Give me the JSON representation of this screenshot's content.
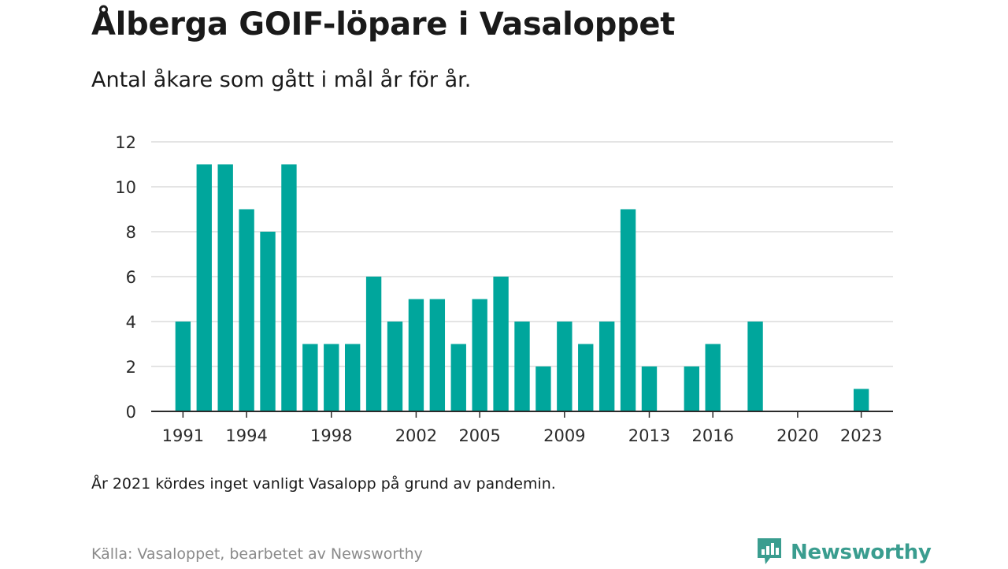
{
  "header": {
    "title": "Ålberga GOIF-löpare i Vasaloppet",
    "subtitle": "Antal åkare som gått i mål år för år."
  },
  "footer": {
    "note": "År 2021 kördes inget vanligt Vasalopp på grund av pandemin.",
    "source": "Källa: Vasaloppet, bearbetet av Newsworthy",
    "brand": "Newsworthy",
    "brand_icon": "newsworthy-logo-icon"
  },
  "colors": {
    "bar": "#00a69c",
    "brand": "#3a9d8f"
  },
  "chart_data": {
    "type": "bar",
    "title": "Ålberga GOIF-löpare i Vasaloppet",
    "xlabel": "",
    "ylabel": "",
    "ylim": [
      0,
      12
    ],
    "yticks": [
      0,
      2,
      4,
      6,
      8,
      10,
      12
    ],
    "xlim": [
      1989.5,
      2024.5
    ],
    "xticks": [
      1991,
      1994,
      1998,
      2002,
      2005,
      2009,
      2013,
      2016,
      2020,
      2023
    ],
    "grid": true,
    "legend": "none",
    "x": [
      1991,
      1992,
      1993,
      1994,
      1995,
      1996,
      1997,
      1998,
      1999,
      2000,
      2001,
      2002,
      2003,
      2004,
      2005,
      2006,
      2007,
      2008,
      2009,
      2010,
      2011,
      2012,
      2013,
      2014,
      2015,
      2016,
      2017,
      2018,
      2019,
      2020,
      2021,
      2022,
      2023
    ],
    "values": [
      4,
      11,
      11,
      9,
      8,
      11,
      3,
      3,
      3,
      6,
      4,
      5,
      5,
      3,
      5,
      6,
      4,
      2,
      4,
      3,
      4,
      9,
      2,
      0,
      2,
      3,
      0,
      4,
      0,
      0,
      0,
      0,
      1
    ]
  }
}
